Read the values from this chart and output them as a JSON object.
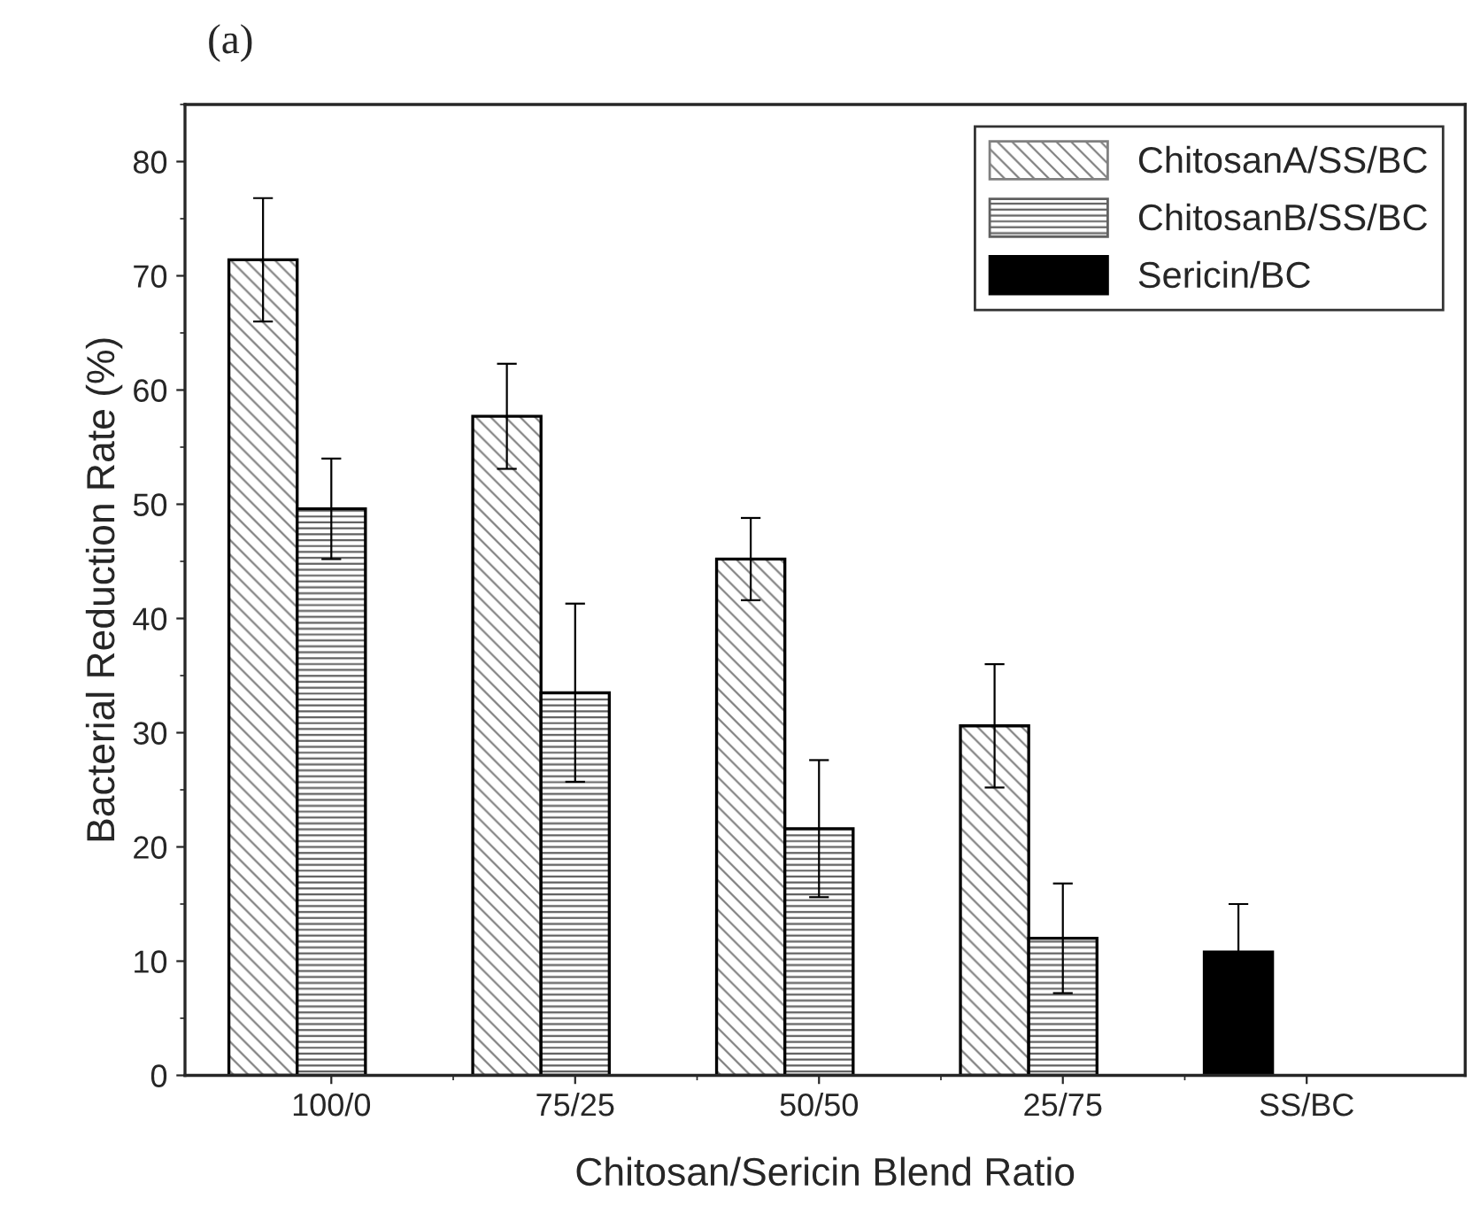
{
  "chart_data": {
    "type": "bar",
    "title": "(a)",
    "xlabel": "Chitosan/Sericin Blend Ratio",
    "ylabel": "Bacterial Reduction Rate (%)",
    "categories": [
      "100/0",
      "75/25",
      "50/50",
      "25/75",
      "SS/BC"
    ],
    "series": [
      {
        "name": "ChitosanA/SS/BC",
        "color": "#808080",
        "values": [
          71.4,
          57.7,
          45.2,
          30.6,
          null
        ],
        "errors": [
          5.4,
          4.6,
          3.6,
          5.4,
          null
        ]
      },
      {
        "name": "ChitosanB/SS/BC",
        "color": "#606060",
        "values": [
          49.6,
          33.5,
          21.6,
          12.0,
          null
        ],
        "errors": [
          4.4,
          7.8,
          6.0,
          4.8,
          null
        ]
      },
      {
        "name": "Sericin/BC",
        "color": "#000000",
        "values": [
          null,
          null,
          null,
          null,
          10.8
        ],
        "errors": [
          null,
          null,
          null,
          null,
          4.2
        ]
      }
    ],
    "ylim": [
      0,
      85
    ],
    "yticks": [
      0,
      10,
      20,
      30,
      40,
      50,
      60,
      70,
      80
    ],
    "grid": false,
    "legend": "top right"
  }
}
